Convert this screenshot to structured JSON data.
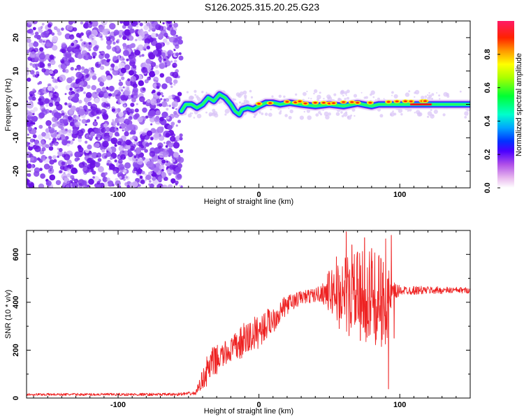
{
  "title": "S126.2025.315.20.25.G23",
  "colors": {
    "snr_line": "#ee2222",
    "frame": "#000000",
    "noise": [
      "#6a11e6",
      "#8844ee",
      "#aa77f2",
      "#c9a8f7",
      "#e2d2fb"
    ],
    "colormap": [
      "#e8b8ee",
      "#d070e0",
      "#8a2be2",
      "#0000ff",
      "#00bfff",
      "#00ff7f",
      "#adff2f",
      "#ffff00",
      "#ff8c00",
      "#ff0000",
      "#ff1493"
    ]
  },
  "chart_data": [
    {
      "type": "heatmap",
      "title": "S126.2025.315.20.25.G23",
      "xlabel": "Height of straight line (km)",
      "ylabel": "Frequency (Hz)",
      "xlim": [
        -165,
        150
      ],
      "ylim": [
        -25,
        25
      ],
      "xticks": [
        -100,
        0,
        100
      ],
      "yticks": [
        -20,
        -10,
        0,
        10,
        20
      ],
      "colorbar": {
        "label": "Normalized spectral amplitude",
        "range": [
          0,
          1
        ],
        "ticks": [
          "0.0",
          "0.2",
          "0.4",
          "0.6",
          "0.8"
        ]
      },
      "noise_region": [
        -165,
        -55
      ],
      "ridge_path": [
        {
          "x": -55,
          "y": -2
        },
        {
          "x": -52,
          "y": 0
        },
        {
          "x": -48,
          "y": 0
        },
        {
          "x": -44,
          "y": -1
        },
        {
          "x": -40,
          "y": 0
        },
        {
          "x": -36,
          "y": 2
        },
        {
          "x": -32,
          "y": 1
        },
        {
          "x": -28,
          "y": 3
        },
        {
          "x": -24,
          "y": 2
        },
        {
          "x": -20,
          "y": 0
        },
        {
          "x": -17,
          "y": -2
        },
        {
          "x": -14,
          "y": -3
        },
        {
          "x": -12,
          "y": -1.5
        },
        {
          "x": -8,
          "y": -1
        },
        {
          "x": -4,
          "y": -1.5
        },
        {
          "x": 0,
          "y": -0.5
        },
        {
          "x": 5,
          "y": 0.5
        },
        {
          "x": 10,
          "y": 0.5
        },
        {
          "x": 15,
          "y": 0
        },
        {
          "x": 22,
          "y": 0.5
        },
        {
          "x": 30,
          "y": 0
        },
        {
          "x": 40,
          "y": -0.5
        },
        {
          "x": 50,
          "y": 0
        },
        {
          "x": 60,
          "y": -0.5
        },
        {
          "x": 70,
          "y": 0.3
        },
        {
          "x": 80,
          "y": -0.5
        },
        {
          "x": 85,
          "y": 0
        },
        {
          "x": 90,
          "y": 0
        },
        {
          "x": 100,
          "y": 0
        },
        {
          "x": 110,
          "y": 0
        },
        {
          "x": 120,
          "y": 0
        },
        {
          "x": 150,
          "y": 0
        }
      ],
      "peaks": [
        {
          "x": 0,
          "y": 0.2
        },
        {
          "x": 8,
          "y": 0.4
        },
        {
          "x": 20,
          "y": 0.8
        },
        {
          "x": 26,
          "y": 0.6
        },
        {
          "x": 29,
          "y": 0.9
        },
        {
          "x": 33,
          "y": 0.3
        },
        {
          "x": 40,
          "y": 0.5
        },
        {
          "x": 46,
          "y": 0.5
        },
        {
          "x": 50,
          "y": 0.3
        },
        {
          "x": 53,
          "y": 0.4
        },
        {
          "x": 60,
          "y": 0.7
        },
        {
          "x": 66,
          "y": 0.7
        },
        {
          "x": 70,
          "y": 0.5
        },
        {
          "x": 79,
          "y": 0.5
        },
        {
          "x": 92,
          "y": 0.75
        },
        {
          "x": 98,
          "y": 0.9
        },
        {
          "x": 104,
          "y": 0.95
        },
        {
          "x": 116,
          "y": 1.0
        },
        {
          "x": 118,
          "y": 1.0
        },
        {
          "x": 108,
          "y": 0.9
        }
      ]
    },
    {
      "type": "line",
      "xlabel": "Height of straight line (km)",
      "ylabel": "SNR (10 * v/v)",
      "xlim": [
        -165,
        150
      ],
      "ylim": [
        0,
        700
      ],
      "xticks": [
        -100,
        0,
        100
      ],
      "yticks": [
        0,
        200,
        400,
        600
      ],
      "series": [
        {
          "name": "SNR",
          "envelope": [
            {
              "x": -165,
              "base": 15,
              "amp": 5
            },
            {
              "x": -60,
              "base": 15,
              "amp": 6
            },
            {
              "x": -45,
              "base": 20,
              "amp": 8
            },
            {
              "x": -40,
              "base": 80,
              "amp": 40
            },
            {
              "x": -35,
              "base": 130,
              "amp": 80
            },
            {
              "x": -30,
              "base": 160,
              "amp": 60
            },
            {
              "x": -20,
              "base": 200,
              "amp": 50
            },
            {
              "x": -10,
              "base": 240,
              "amp": 80
            },
            {
              "x": 0,
              "base": 280,
              "amp": 70
            },
            {
              "x": 10,
              "base": 330,
              "amp": 60
            },
            {
              "x": 20,
              "base": 390,
              "amp": 40
            },
            {
              "x": 30,
              "base": 420,
              "amp": 30
            },
            {
              "x": 40,
              "base": 430,
              "amp": 30
            },
            {
              "x": 45,
              "base": 440,
              "amp": 40
            },
            {
              "x": 50,
              "base": 445,
              "amp": 90
            },
            {
              "x": 60,
              "base": 440,
              "amp": 160
            },
            {
              "x": 70,
              "base": 430,
              "amp": 180
            },
            {
              "x": 80,
              "base": 420,
              "amp": 200
            },
            {
              "x": 90,
              "base": 400,
              "amp": 180
            },
            {
              "x": 95,
              "base": 430,
              "amp": 60
            },
            {
              "x": 100,
              "base": 450,
              "amp": 20
            },
            {
              "x": 150,
              "base": 450,
              "amp": 12
            }
          ],
          "spikes": [
            {
              "x": 55,
              "value": 590
            },
            {
              "x": 57,
              "value": 290
            },
            {
              "x": 62,
              "value": 695
            },
            {
              "x": 64,
              "value": 260
            },
            {
              "x": 66,
              "value": 640
            },
            {
              "x": 70,
              "value": 610
            },
            {
              "x": 72,
              "value": 240
            },
            {
              "x": 75,
              "value": 670
            },
            {
              "x": 78,
              "value": 260
            },
            {
              "x": 80,
              "value": 625
            },
            {
              "x": 83,
              "value": 250
            },
            {
              "x": 85,
              "value": 590
            },
            {
              "x": 87,
              "value": 215
            },
            {
              "x": 90,
              "value": 665
            },
            {
              "x": 92,
              "value": 38
            },
            {
              "x": 94,
              "value": 680
            },
            {
              "x": 96,
              "value": 250
            }
          ]
        }
      ]
    }
  ]
}
